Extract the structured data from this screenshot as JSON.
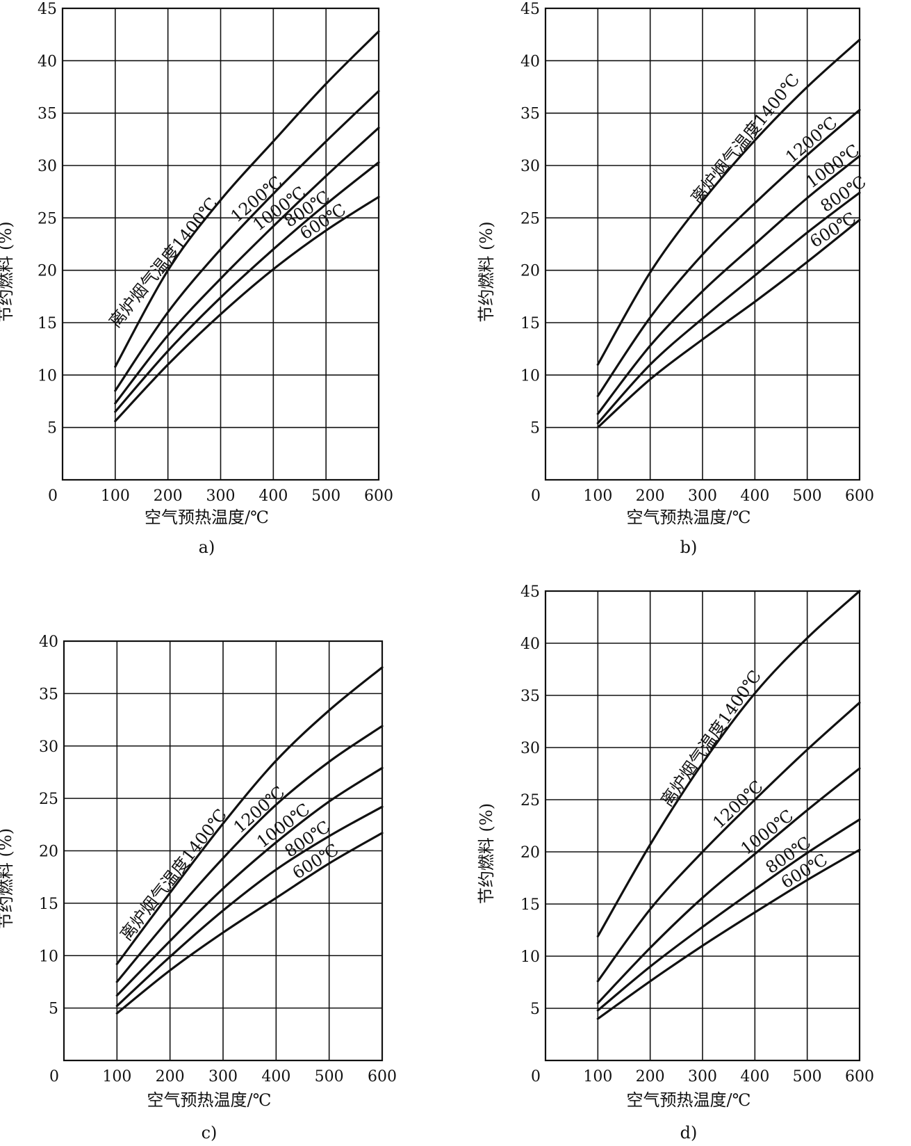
{
  "chart_data": [
    {
      "type": "line",
      "caption": "a)",
      "xlabel": "空气预热温度/℃",
      "ylabel": "节约燃料 (%)",
      "xlim": [
        0,
        600
      ],
      "ylim": [
        0,
        45
      ],
      "x_ticks": [
        "0",
        "100",
        "200",
        "300",
        "400",
        "500",
        "600"
      ],
      "y_ticks": [
        "5",
        "10",
        "15",
        "20",
        "25",
        "30",
        "35",
        "40",
        "45"
      ],
      "grid": true,
      "series": [
        {
          "name": "离炉烟气温度1400℃",
          "x": [
            100,
            200,
            300,
            400,
            500,
            600
          ],
          "y": [
            10.8,
            20,
            26.7,
            32.3,
            37.8,
            42.8
          ]
        },
        {
          "name": "1200℃",
          "x": [
            100,
            200,
            300,
            400,
            500,
            600
          ],
          "y": [
            8.5,
            16,
            22,
            27.3,
            32.3,
            37.1
          ]
        },
        {
          "name": "1000℃",
          "x": [
            100,
            200,
            300,
            400,
            500,
            600
          ],
          "y": [
            7.3,
            13.8,
            19.2,
            24.2,
            29,
            33.6
          ]
        },
        {
          "name": "800℃",
          "x": [
            100,
            200,
            300,
            400,
            500,
            600
          ],
          "y": [
            6.5,
            12.3,
            17.4,
            22,
            26.3,
            30.3
          ]
        },
        {
          "name": "600℃",
          "x": [
            100,
            200,
            300,
            400,
            500,
            600
          ],
          "y": [
            5.6,
            11,
            15.8,
            20.1,
            23.8,
            27
          ]
        }
      ]
    },
    {
      "type": "line",
      "caption": "b)",
      "xlabel": "空气预热温度/℃",
      "ylabel": "节约燃料 (%)",
      "xlim": [
        0,
        600
      ],
      "ylim": [
        0,
        45
      ],
      "x_ticks": [
        "0",
        "100",
        "200",
        "300",
        "400",
        "500",
        "600"
      ],
      "y_ticks": [
        "5",
        "10",
        "15",
        "20",
        "25",
        "30",
        "35",
        "40",
        "45"
      ],
      "grid": true,
      "series": [
        {
          "name": "离炉烟气温度1400℃",
          "x": [
            100,
            200,
            300,
            400,
            500,
            600
          ],
          "y": [
            11,
            19.8,
            26.6,
            32.4,
            37.5,
            42
          ]
        },
        {
          "name": "1200℃",
          "x": [
            100,
            200,
            300,
            400,
            500,
            600
          ],
          "y": [
            8,
            15.5,
            21.5,
            26.4,
            31,
            35.3
          ]
        },
        {
          "name": "1000℃",
          "x": [
            100,
            200,
            300,
            400,
            500,
            600
          ],
          "y": [
            6.3,
            12.8,
            18,
            22.5,
            26.9,
            30.9
          ]
        },
        {
          "name": "800℃",
          "x": [
            100,
            200,
            300,
            400,
            500,
            600
          ],
          "y": [
            5.4,
            11,
            15.4,
            19.5,
            23.6,
            27.4
          ]
        },
        {
          "name": "600℃",
          "x": [
            100,
            200,
            300,
            400,
            500,
            600
          ],
          "y": [
            5,
            9.6,
            13.4,
            17,
            20.8,
            24.8
          ]
        }
      ]
    },
    {
      "type": "line",
      "caption": "c)",
      "xlabel": "空气预热温度/℃",
      "ylabel": "节约燃料 (%)",
      "xlim": [
        0,
        600
      ],
      "ylim": [
        0,
        40
      ],
      "x_ticks": [
        "0",
        "100",
        "200",
        "300",
        "400",
        "500",
        "600"
      ],
      "y_ticks": [
        "5",
        "10",
        "15",
        "20",
        "25",
        "30",
        "35",
        "40"
      ],
      "grid": true,
      "series": [
        {
          "name": "离炉烟气温度1400℃",
          "x": [
            100,
            200,
            300,
            400,
            500,
            600
          ],
          "y": [
            9.2,
            16,
            22.6,
            28.6,
            33.4,
            37.5
          ]
        },
        {
          "name": "1200℃",
          "x": [
            100,
            200,
            300,
            400,
            500,
            600
          ],
          "y": [
            7.5,
            13.6,
            19.3,
            24.4,
            28.5,
            31.9
          ]
        },
        {
          "name": "1000℃",
          "x": [
            100,
            200,
            300,
            400,
            500,
            600
          ],
          "y": [
            6.2,
            11.4,
            16.4,
            20.8,
            24.7,
            27.9
          ]
        },
        {
          "name": "800℃",
          "x": [
            100,
            200,
            300,
            400,
            500,
            600
          ],
          "y": [
            5.2,
            9.9,
            14.3,
            18.2,
            21.4,
            24.2
          ]
        },
        {
          "name": "600℃",
          "x": [
            100,
            200,
            300,
            400,
            500,
            600
          ],
          "y": [
            4.5,
            8.6,
            12.2,
            15.5,
            18.8,
            21.7
          ]
        }
      ]
    },
    {
      "type": "line",
      "caption": "d)",
      "xlabel": "空气预热温度/℃",
      "ylabel": "节约燃料 (%)",
      "xlim": [
        0,
        600
      ],
      "ylim": [
        0,
        45
      ],
      "x_ticks": [
        "0",
        "100",
        "200",
        "300",
        "400",
        "500",
        "600"
      ],
      "y_ticks": [
        "5",
        "10",
        "15",
        "20",
        "25",
        "30",
        "35",
        "40",
        "45"
      ],
      "grid": true,
      "series": [
        {
          "name": "离炉烟气温度1400℃",
          "x": [
            100,
            200,
            300,
            400,
            500,
            600
          ],
          "y": [
            11.9,
            20.7,
            28.5,
            35.2,
            40.5,
            45
          ]
        },
        {
          "name": "1200℃",
          "x": [
            100,
            200,
            300,
            400,
            500,
            600
          ],
          "y": [
            7.6,
            14.5,
            20,
            25,
            29.8,
            34.3
          ]
        },
        {
          "name": "1000℃",
          "x": [
            100,
            200,
            300,
            400,
            500,
            600
          ],
          "y": [
            5.5,
            10.8,
            15.6,
            19.8,
            24,
            28
          ]
        },
        {
          "name": "800℃",
          "x": [
            100,
            200,
            300,
            400,
            500,
            600
          ],
          "y": [
            4.8,
            9,
            12.8,
            16.4,
            19.9,
            23.1
          ]
        },
        {
          "name": "600℃",
          "x": [
            100,
            200,
            300,
            400,
            500,
            600
          ],
          "y": [
            4,
            7.6,
            11,
            14.2,
            17.3,
            20.2
          ]
        }
      ]
    }
  ]
}
